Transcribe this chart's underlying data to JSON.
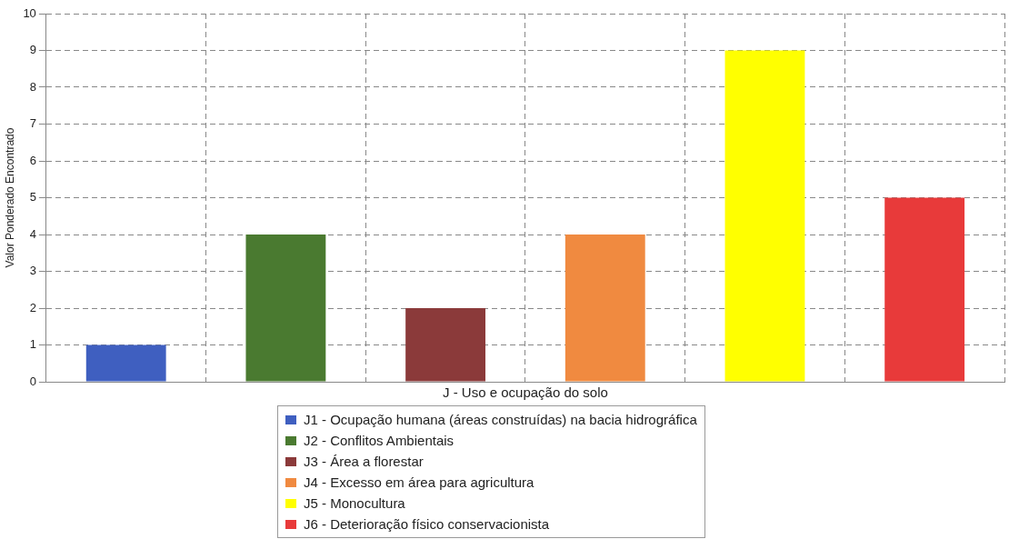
{
  "chart_data": {
    "type": "bar",
    "xlabel": "J - Uso e ocupação do solo",
    "ylabel": "Valor Ponderado Encontrado",
    "categories": [
      null,
      null,
      null,
      null,
      null,
      null
    ],
    "series": [
      {
        "name": "J1 - Ocupação humana (áreas construídas) na bacia hidrográfica",
        "color": "#3f5fc0",
        "values": [
          1,
          null,
          null,
          null,
          null,
          null
        ]
      },
      {
        "name": "J2 - Conflitos Ambientais",
        "color": "#4a7a30",
        "values": [
          null,
          4,
          null,
          null,
          null,
          null
        ]
      },
      {
        "name": "J3 - Área a florestar",
        "color": "#8b3a3a",
        "values": [
          null,
          null,
          2,
          null,
          null,
          null
        ]
      },
      {
        "name": "J4 - Excesso em área para agricultura",
        "color": "#f08a40",
        "values": [
          null,
          null,
          null,
          4,
          null,
          null
        ]
      },
      {
        "name": "J5 - Monocultura",
        "color": "#ffff00",
        "values": [
          null,
          null,
          null,
          null,
          9,
          null
        ]
      },
      {
        "name": "J6 - Deterioração físico conservacionista",
        "color": "#e83a3a",
        "values": [
          null,
          null,
          null,
          null,
          null,
          5
        ]
      }
    ],
    "ylim": [
      0,
      10
    ],
    "yticks": [
      0,
      1,
      2,
      3,
      4,
      5,
      6,
      7,
      8,
      9,
      10
    ],
    "grid": true,
    "line_style": "dashed",
    "legend": "bottom"
  }
}
